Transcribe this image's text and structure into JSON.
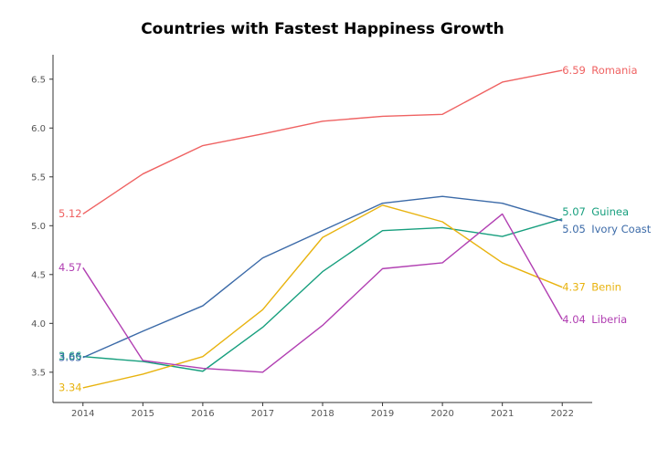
{
  "chart_data": {
    "type": "line",
    "title": "Countries with Fastest Happiness Growth",
    "xlabel": "",
    "ylabel": "",
    "x": [
      2014,
      2015,
      2016,
      2017,
      2018,
      2019,
      2020,
      2021,
      2022
    ],
    "xlim": [
      2013.5,
      2022.5
    ],
    "ylim": [
      3.19,
      6.75
    ],
    "yticks": [
      "3.5",
      "4.0",
      "4.5",
      "5.0",
      "5.5",
      "6.0",
      "6.5"
    ],
    "grid": false,
    "legend": "none (end-of-line labels)",
    "series": [
      {
        "name": "Romania",
        "color": "#ef6262",
        "values": [
          5.12,
          5.53,
          5.82,
          5.94,
          6.07,
          6.12,
          6.14,
          6.47,
          6.59
        ],
        "start_label": "5.12",
        "end_value_label": "6.59"
      },
      {
        "name": "Guinea",
        "color": "#179f7e",
        "values": [
          3.66,
          3.61,
          3.51,
          3.96,
          4.53,
          4.95,
          4.98,
          4.89,
          5.07
        ],
        "start_label": "3.66",
        "end_value_label": "5.07"
      },
      {
        "name": "Ivory Coast",
        "color": "#3b6aa8",
        "values": [
          3.65,
          3.92,
          4.18,
          4.67,
          4.95,
          5.23,
          5.3,
          5.23,
          5.05
        ],
        "start_label": "3.65",
        "end_value_label": "5.05"
      },
      {
        "name": "Benin",
        "color": "#e8b30f",
        "values": [
          3.34,
          3.48,
          3.66,
          4.14,
          4.88,
          5.21,
          5.04,
          4.62,
          4.37
        ],
        "start_label": "3.34",
        "end_value_label": "4.37"
      },
      {
        "name": "Liberia",
        "color": "#b13fb2",
        "values": [
          4.57,
          3.62,
          3.54,
          3.5,
          3.98,
          4.56,
          4.62,
          5.12,
          4.04
        ],
        "start_label": "4.57",
        "end_value_label": "4.04"
      }
    ]
  }
}
